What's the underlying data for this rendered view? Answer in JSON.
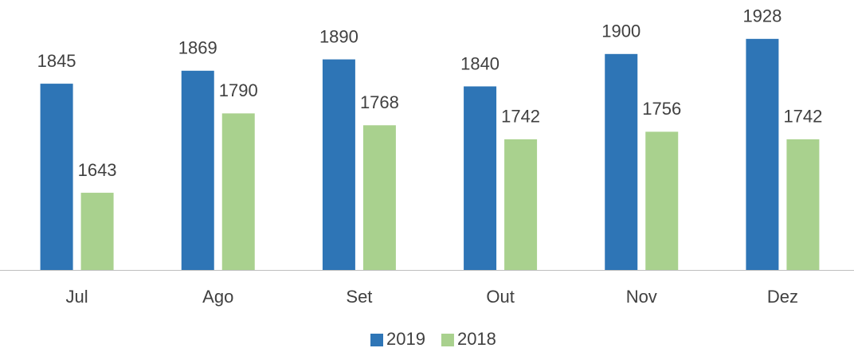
{
  "chart_data": {
    "type": "bar",
    "categories": [
      "Jul",
      "Ago",
      "Set",
      "Out",
      "Nov",
      "Dez"
    ],
    "series": [
      {
        "name": "2019",
        "color": "#2e75b6",
        "values": [
          1845,
          1869,
          1890,
          1840,
          1900,
          1928
        ]
      },
      {
        "name": "2018",
        "color": "#a9d18e",
        "values": [
          1643,
          1790,
          1768,
          1742,
          1756,
          1742
        ]
      }
    ],
    "ylim": [
      1500,
      2000
    ],
    "legend": "bottom"
  }
}
